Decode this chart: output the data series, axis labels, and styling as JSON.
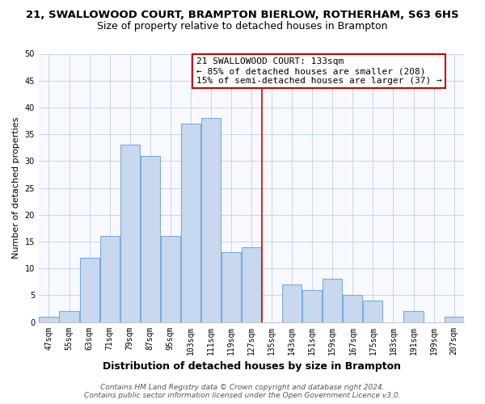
{
  "title": "21, SWALLOWOOD COURT, BRAMPTON BIERLOW, ROTHERHAM, S63 6HS",
  "subtitle": "Size of property relative to detached houses in Brampton",
  "xlabel": "Distribution of detached houses by size in Brampton",
  "ylabel": "Number of detached properties",
  "bin_labels": [
    "47sqm",
    "55sqm",
    "63sqm",
    "71sqm",
    "79sqm",
    "87sqm",
    "95sqm",
    "103sqm",
    "111sqm",
    "119sqm",
    "127sqm",
    "135sqm",
    "143sqm",
    "151sqm",
    "159sqm",
    "167sqm",
    "175sqm",
    "183sqm",
    "191sqm",
    "199sqm",
    "207sqm"
  ],
  "bin_edges": [
    47,
    55,
    63,
    71,
    79,
    87,
    95,
    103,
    111,
    119,
    127,
    135,
    143,
    151,
    159,
    167,
    175,
    183,
    191,
    199,
    207
  ],
  "bar_heights": [
    1,
    2,
    12,
    16,
    33,
    31,
    16,
    37,
    38,
    13,
    14,
    0,
    7,
    6,
    8,
    5,
    4,
    0,
    2,
    0,
    1
  ],
  "bar_color": "#c8d8ee",
  "bar_edge_color": "#7aacdc",
  "grid_color": "#c8d4e8",
  "ref_line_x": 135,
  "ref_line_color": "#cc0000",
  "ylim": [
    0,
    50
  ],
  "annotation_title": "21 SWALLOWOOD COURT: 133sqm",
  "annotation_line1": "← 85% of detached houses are smaller (208)",
  "annotation_line2": "15% of semi-detached houses are larger (37) →",
  "annotation_box_color": "#ffffff",
  "annotation_box_edge": "#cc0000",
  "footer_line1": "Contains HM Land Registry data © Crown copyright and database right 2024.",
  "footer_line2": "Contains public sector information licensed under the Open Government Licence v3.0.",
  "title_fontsize": 9.5,
  "subtitle_fontsize": 9,
  "xlabel_fontsize": 9,
  "ylabel_fontsize": 8,
  "tick_fontsize": 7,
  "annotation_fontsize": 8,
  "footer_fontsize": 6.5
}
